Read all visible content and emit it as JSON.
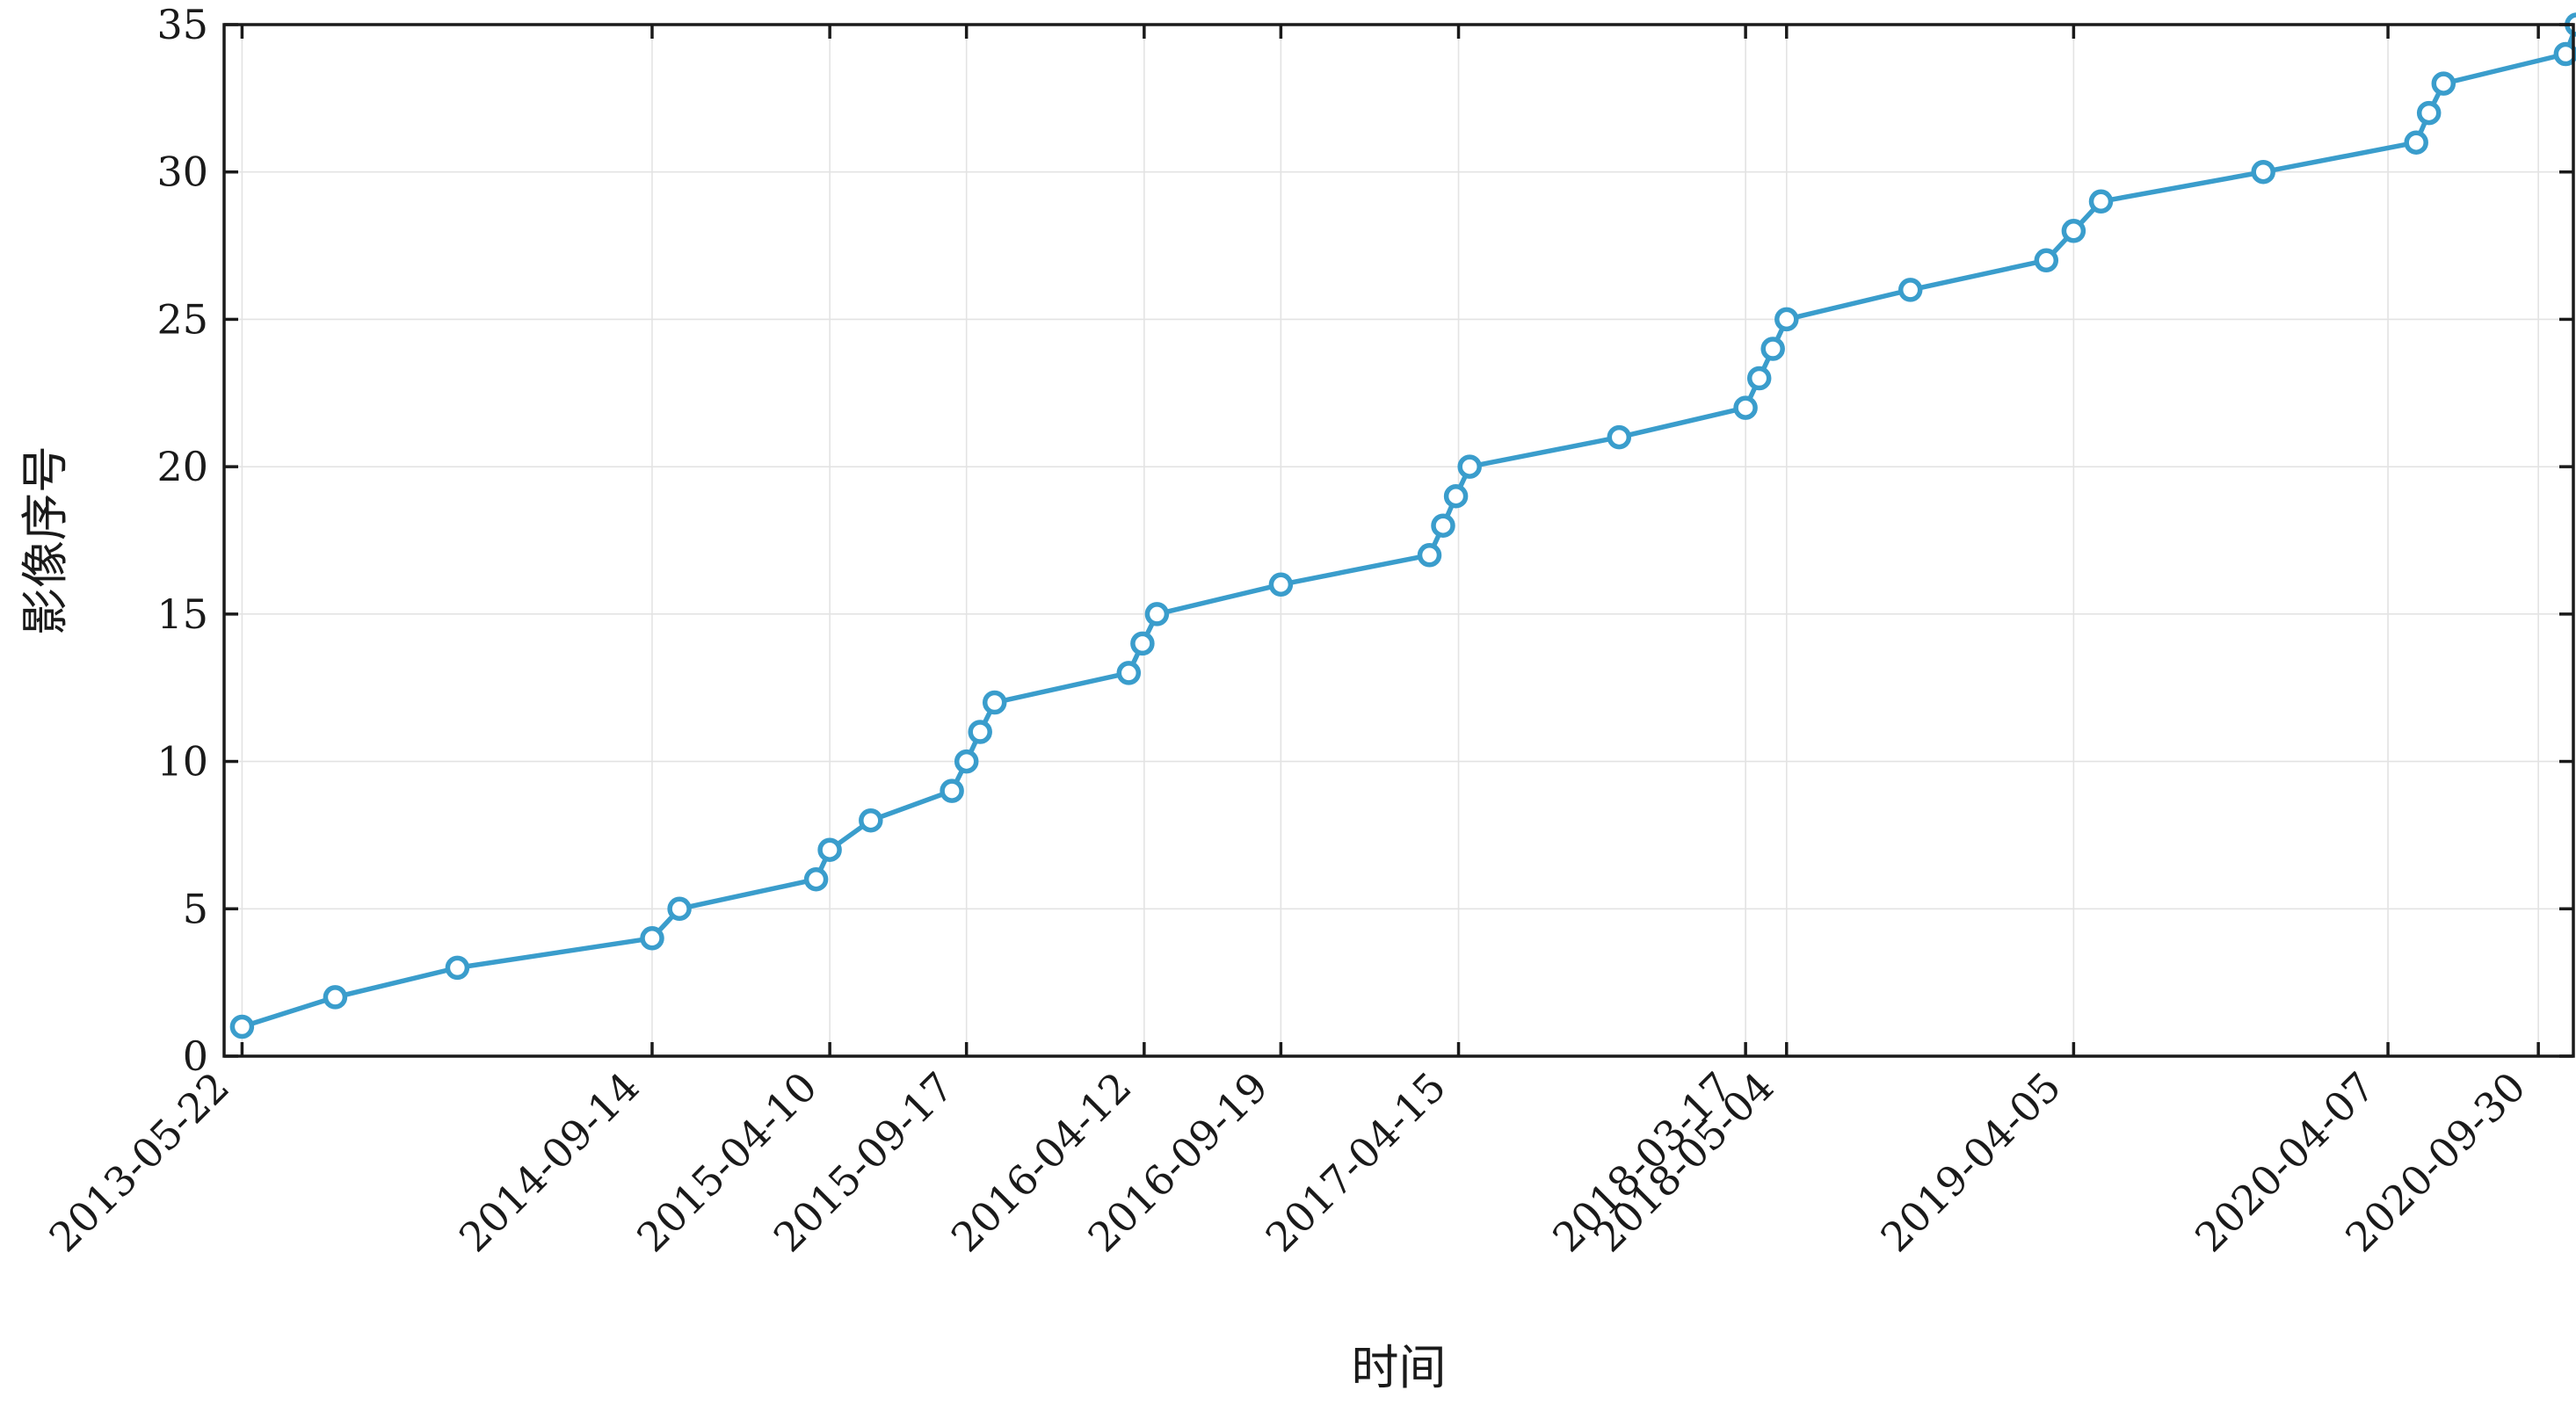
{
  "chart_data": {
    "type": "line",
    "xlabel": "时间",
    "ylabel": "影像序号",
    "ylim": [
      0,
      35
    ],
    "yticks": [
      0,
      5,
      10,
      15,
      20,
      25,
      30,
      35
    ],
    "xlim": [
      "2013-05-01",
      "2020-11-10"
    ],
    "xtick_labels": [
      "2013-05-22",
      "2014-09-14",
      "2015-04-10",
      "2015-09-17",
      "2016-04-12",
      "2016-09-19",
      "2017-04-15",
      "2018-03-17",
      "2018-05-04",
      "2019-04-05",
      "2020-04-07",
      "2020-09-30"
    ],
    "grid": true,
    "series_color": "#3a9dcc",
    "marker": "circle",
    "series": [
      {
        "x": [
          "2013-05-22",
          "2013-09-08",
          "2014-01-29",
          "2014-09-14",
          "2014-10-16",
          "2015-03-25",
          "2015-04-10",
          "2015-05-28",
          "2015-08-31",
          "2015-09-17",
          "2015-10-03",
          "2015-10-20",
          "2016-03-25",
          "2016-04-10",
          "2016-04-27",
          "2016-09-19",
          "2017-03-12",
          "2017-03-28",
          "2017-04-12",
          "2017-04-28",
          "2017-10-20",
          "2018-03-17",
          "2018-04-02",
          "2018-04-18",
          "2018-05-04",
          "2018-09-26",
          "2019-03-04",
          "2019-04-05",
          "2019-05-07",
          "2019-11-13",
          "2020-05-10",
          "2020-05-25",
          "2020-06-11",
          "2020-11-01",
          "2020-11-14"
        ],
        "y": [
          1,
          2,
          3,
          4,
          5,
          6,
          7,
          8,
          9,
          10,
          11,
          12,
          13,
          14,
          15,
          16,
          17,
          18,
          19,
          20,
          21,
          22,
          23,
          24,
          25,
          26,
          27,
          28,
          29,
          30,
          31,
          32,
          33,
          34,
          35
        ]
      }
    ]
  }
}
